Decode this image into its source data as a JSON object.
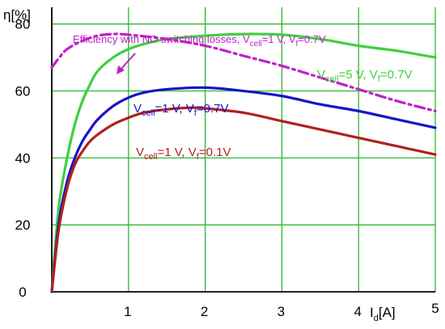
{
  "chart_data": {
    "type": "line",
    "title": "",
    "xlabel": {
      "main": "I",
      "sub": "d",
      "unit": "[A]"
    },
    "ylabel": "η[%]",
    "xlim": [
      0,
      5
    ],
    "ylim": [
      0,
      85
    ],
    "xticks": [
      1,
      2,
      3,
      4,
      5
    ],
    "yticks": [
      0,
      20,
      40,
      60,
      80
    ],
    "grid": true,
    "colors": {
      "grid": "#2db82d",
      "axis": "#000000"
    },
    "series": [
      {
        "key": "s5v",
        "color": "#3fcf3f",
        "style": "solid",
        "label_parts": [
          [
            "V",
            ""
          ],
          [
            "cell",
            "sub"
          ],
          [
            "=5 V, V",
            ""
          ],
          [
            "f",
            "sub"
          ],
          [
            "=0.7V",
            ""
          ]
        ],
        "points": [
          [
            0,
            0
          ],
          [
            0.05,
            15
          ],
          [
            0.1,
            27
          ],
          [
            0.2,
            40
          ],
          [
            0.3,
            50
          ],
          [
            0.4,
            57
          ],
          [
            0.5,
            62
          ],
          [
            0.6,
            66
          ],
          [
            0.8,
            70
          ],
          [
            1,
            72.5
          ],
          [
            1.2,
            74
          ],
          [
            1.5,
            75.5
          ],
          [
            2,
            76.5
          ],
          [
            2.5,
            77
          ],
          [
            3,
            76.8
          ],
          [
            3.5,
            75.5
          ],
          [
            4,
            73.5
          ],
          [
            4.5,
            72
          ],
          [
            5,
            70
          ]
        ]
      },
      {
        "key": "s1v07",
        "color": "#1515c8",
        "style": "solid",
        "label_parts": [
          [
            "V",
            ""
          ],
          [
            "cell",
            "sub"
          ],
          [
            "=1 V, V",
            ""
          ],
          [
            "f",
            "sub"
          ],
          [
            "=0.7V",
            ""
          ]
        ],
        "points": [
          [
            0,
            0
          ],
          [
            0.05,
            12
          ],
          [
            0.1,
            22
          ],
          [
            0.2,
            33
          ],
          [
            0.3,
            40
          ],
          [
            0.4,
            45
          ],
          [
            0.5,
            48.5
          ],
          [
            0.6,
            51.5
          ],
          [
            0.8,
            55.5
          ],
          [
            1,
            58
          ],
          [
            1.2,
            59.5
          ],
          [
            1.5,
            60.5
          ],
          [
            2,
            61
          ],
          [
            2.5,
            60
          ],
          [
            3,
            58.5
          ],
          [
            3.5,
            56
          ],
          [
            4,
            54
          ],
          [
            4.5,
            51.5
          ],
          [
            5,
            49
          ]
        ]
      },
      {
        "key": "s1v01",
        "color": "#b02020",
        "style": "solid",
        "label_parts": [
          [
            "V",
            ""
          ],
          [
            "cell",
            "sub"
          ],
          [
            "=1 V, V",
            ""
          ],
          [
            "f",
            "sub"
          ],
          [
            "=0.1V",
            ""
          ]
        ],
        "points": [
          [
            0,
            0
          ],
          [
            0.05,
            11
          ],
          [
            0.1,
            20
          ],
          [
            0.2,
            31
          ],
          [
            0.3,
            38
          ],
          [
            0.4,
            42
          ],
          [
            0.5,
            45
          ],
          [
            0.6,
            47
          ],
          [
            0.8,
            50
          ],
          [
            1,
            52
          ],
          [
            1.2,
            53.5
          ],
          [
            1.5,
            54.5
          ],
          [
            1.8,
            55
          ],
          [
            2,
            54.8
          ],
          [
            2.5,
            53.5
          ],
          [
            3,
            51
          ],
          [
            3.5,
            48.5
          ],
          [
            4,
            46
          ],
          [
            4.5,
            43.5
          ],
          [
            5,
            41
          ]
        ]
      },
      {
        "key": "sideal",
        "color": "#c020c8",
        "style": "dashdot",
        "label_parts": [
          [
            "Efficiency with NO switching losses, V",
            ""
          ],
          [
            "cell",
            "sub"
          ],
          [
            "=1 V, V",
            ""
          ],
          [
            "f",
            "sub"
          ],
          [
            "=0.7V",
            ""
          ]
        ],
        "points": [
          [
            0,
            67
          ],
          [
            0.1,
            70
          ],
          [
            0.2,
            72.5
          ],
          [
            0.4,
            75
          ],
          [
            0.6,
            76.5
          ],
          [
            0.8,
            77
          ],
          [
            1,
            76.8
          ],
          [
            1.5,
            75.5
          ],
          [
            2,
            73.5
          ],
          [
            2.5,
            70.5
          ],
          [
            3,
            67.5
          ],
          [
            3.5,
            64
          ],
          [
            4,
            60.5
          ],
          [
            4.5,
            57
          ],
          [
            5,
            54
          ]
        ]
      }
    ]
  }
}
